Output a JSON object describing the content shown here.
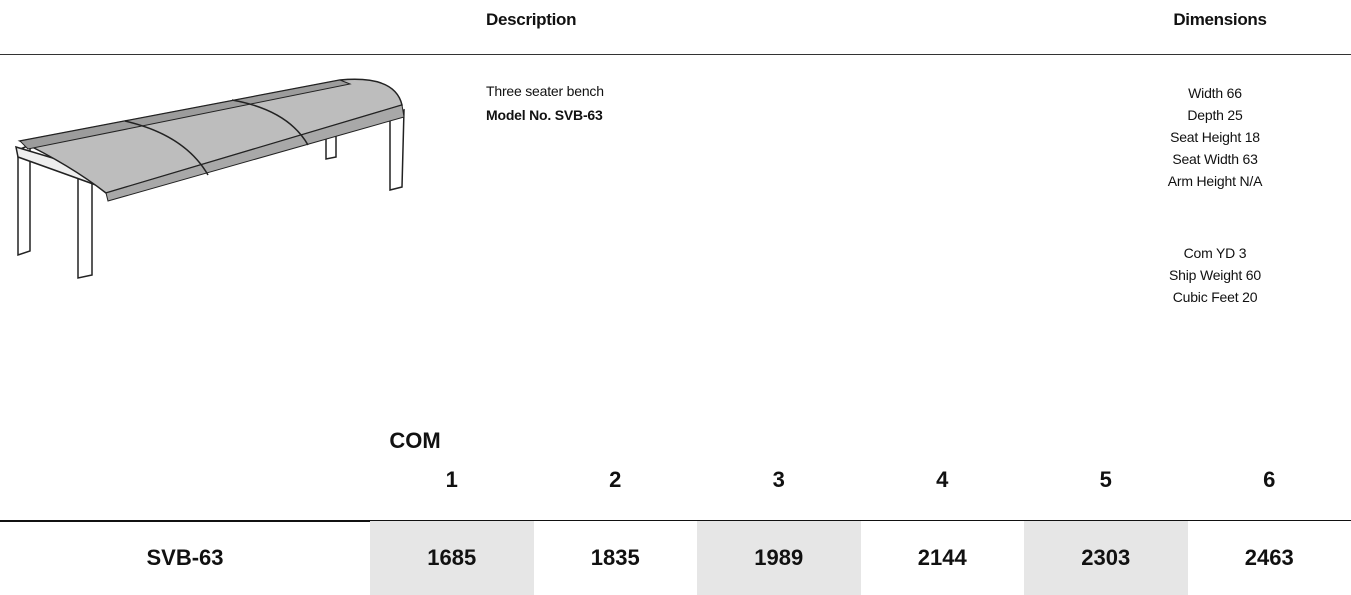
{
  "header": {
    "description": "Description",
    "dimensions": "Dimensions"
  },
  "product": {
    "description": "Three seater bench",
    "model": "Model No. SVB-63",
    "dimensions": [
      "Width 66",
      "Depth 25",
      "Seat Height 18",
      "Seat Width 63",
      "Arm Height N/A"
    ],
    "dimensions_extra": [
      "Com YD 3",
      "Ship Weight 60",
      "Cubic Feet 20"
    ]
  },
  "pricing": {
    "com_label": "COM",
    "grades": [
      1,
      2,
      3,
      4,
      5,
      6
    ],
    "rows": [
      {
        "model": "SVB-63",
        "prices": [
          1685,
          1835,
          1989,
          2144,
          2303,
          2463
        ]
      }
    ]
  }
}
